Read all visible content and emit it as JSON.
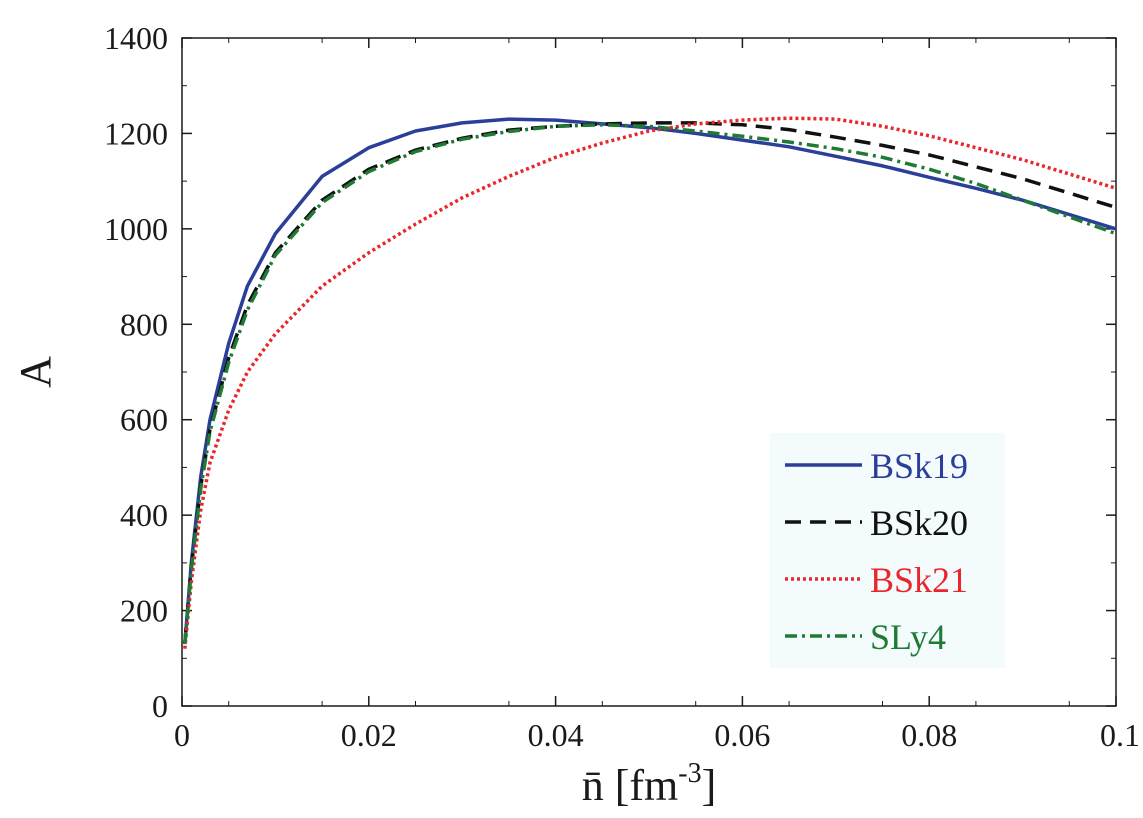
{
  "chart_data": {
    "type": "line",
    "title": "",
    "xlabel": "n̄ [fm",
    "xlabel_sup": "-3",
    "xlabel_close": "]",
    "ylabel": "A",
    "xlim": [
      0,
      0.1
    ],
    "ylim": [
      0,
      1400
    ],
    "x_ticks": [
      "0",
      "0.02",
      "0.04",
      "0.06",
      "0.08",
      "0.1"
    ],
    "y_ticks": [
      "0",
      "200",
      "400",
      "600",
      "800",
      "1000",
      "1200",
      "1400"
    ],
    "grid": false,
    "legend_position": "bottom-right",
    "legend_bg": "#f3fbfd",
    "series": [
      {
        "name": "BSk19",
        "color": "#2b3f9a",
        "dash": "solid",
        "points": [
          [
            0.0003,
            130
          ],
          [
            0.001,
            300
          ],
          [
            0.002,
            480
          ],
          [
            0.003,
            600
          ],
          [
            0.005,
            760
          ],
          [
            0.007,
            880
          ],
          [
            0.01,
            990
          ],
          [
            0.015,
            1110
          ],
          [
            0.02,
            1170
          ],
          [
            0.025,
            1205
          ],
          [
            0.03,
            1222
          ],
          [
            0.035,
            1230
          ],
          [
            0.04,
            1228
          ],
          [
            0.045,
            1220
          ],
          [
            0.05,
            1212
          ],
          [
            0.055,
            1200
          ],
          [
            0.06,
            1186
          ],
          [
            0.065,
            1172
          ],
          [
            0.07,
            1152
          ],
          [
            0.075,
            1132
          ],
          [
            0.08,
            1108
          ],
          [
            0.085,
            1085
          ],
          [
            0.09,
            1060
          ],
          [
            0.095,
            1030
          ],
          [
            0.1,
            1000
          ]
        ]
      },
      {
        "name": "BSk20",
        "color": "#111111",
        "dash": "dashed",
        "points": [
          [
            0.0003,
            130
          ],
          [
            0.001,
            290
          ],
          [
            0.002,
            460
          ],
          [
            0.003,
            580
          ],
          [
            0.005,
            730
          ],
          [
            0.007,
            840
          ],
          [
            0.01,
            950
          ],
          [
            0.015,
            1060
          ],
          [
            0.02,
            1125
          ],
          [
            0.025,
            1165
          ],
          [
            0.03,
            1190
          ],
          [
            0.035,
            1207
          ],
          [
            0.04,
            1215
          ],
          [
            0.045,
            1220
          ],
          [
            0.05,
            1222
          ],
          [
            0.055,
            1222
          ],
          [
            0.06,
            1218
          ],
          [
            0.065,
            1208
          ],
          [
            0.07,
            1192
          ],
          [
            0.075,
            1175
          ],
          [
            0.08,
            1155
          ],
          [
            0.085,
            1130
          ],
          [
            0.09,
            1105
          ],
          [
            0.095,
            1075
          ],
          [
            0.1,
            1045
          ]
        ]
      },
      {
        "name": "BSk21",
        "color": "#e8262b",
        "dash": "dotted",
        "points": [
          [
            0.0003,
            120
          ],
          [
            0.001,
            260
          ],
          [
            0.002,
            410
          ],
          [
            0.003,
            510
          ],
          [
            0.005,
            620
          ],
          [
            0.007,
            700
          ],
          [
            0.01,
            780
          ],
          [
            0.015,
            880
          ],
          [
            0.02,
            950
          ],
          [
            0.025,
            1010
          ],
          [
            0.03,
            1065
          ],
          [
            0.035,
            1110
          ],
          [
            0.04,
            1150
          ],
          [
            0.045,
            1180
          ],
          [
            0.05,
            1205
          ],
          [
            0.055,
            1220
          ],
          [
            0.06,
            1228
          ],
          [
            0.065,
            1232
          ],
          [
            0.07,
            1230
          ],
          [
            0.075,
            1215
          ],
          [
            0.08,
            1195
          ],
          [
            0.085,
            1170
          ],
          [
            0.09,
            1145
          ],
          [
            0.095,
            1115
          ],
          [
            0.1,
            1085
          ]
        ]
      },
      {
        "name": "SLy4",
        "color": "#1f7a34",
        "dash": "dashdot",
        "points": [
          [
            0.0003,
            130
          ],
          [
            0.001,
            285
          ],
          [
            0.002,
            455
          ],
          [
            0.003,
            575
          ],
          [
            0.005,
            720
          ],
          [
            0.007,
            830
          ],
          [
            0.01,
            945
          ],
          [
            0.015,
            1055
          ],
          [
            0.02,
            1120
          ],
          [
            0.025,
            1162
          ],
          [
            0.03,
            1188
          ],
          [
            0.035,
            1204
          ],
          [
            0.04,
            1215
          ],
          [
            0.045,
            1218
          ],
          [
            0.05,
            1215
          ],
          [
            0.055,
            1205
          ],
          [
            0.06,
            1194
          ],
          [
            0.065,
            1182
          ],
          [
            0.07,
            1168
          ],
          [
            0.075,
            1150
          ],
          [
            0.08,
            1125
          ],
          [
            0.085,
            1095
          ],
          [
            0.09,
            1060
          ],
          [
            0.095,
            1025
          ],
          [
            0.1,
            990
          ]
        ]
      }
    ]
  }
}
